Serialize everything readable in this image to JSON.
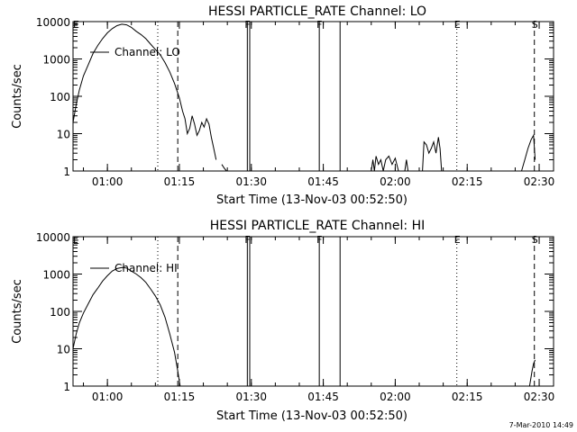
{
  "footer_text": "7-Mar-2010 14:49",
  "chart_data": [
    {
      "type": "line",
      "title": "HESSI PARTICLE_RATE Channel: LO",
      "xlabel": "Start Time (13-Nov-03 00:52:50)",
      "ylabel": "Counts/sec",
      "y_scale": "log",
      "ylim": [
        1,
        10000
      ],
      "xlim": [
        "00:52:50",
        "02:33:00"
      ],
      "x_ticks": [
        "01:00",
        "01:15",
        "01:30",
        "01:45",
        "02:00",
        "02:15",
        "02:30"
      ],
      "y_ticks": [
        "1",
        "10",
        "100",
        "1000",
        "10000"
      ],
      "legend": {
        "position": "top-left",
        "entries": [
          {
            "name": "Channel: LO"
          }
        ]
      },
      "event_lines": [
        {
          "time": "01:10:30",
          "style": "dotted",
          "label": ""
        },
        {
          "time": "01:14:40",
          "style": "dashed",
          "label": ""
        },
        {
          "time": "01:29:10",
          "style": "solid",
          "label": "F"
        },
        {
          "time": "01:29:40",
          "style": "solid",
          "label": ""
        },
        {
          "time": "01:44:10",
          "style": "solid",
          "label": "F"
        },
        {
          "time": "01:48:30",
          "style": "solid",
          "label": ""
        },
        {
          "time": "02:12:50",
          "style": "dotted",
          "label": "E"
        },
        {
          "time": "02:29:00",
          "style": "dashed",
          "label": "S"
        }
      ],
      "edge_label": "E",
      "series": [
        {
          "segments": [
            [
              [
                "00:52:50",
                20
              ],
              [
                "00:53:30",
                60
              ],
              [
                "00:54:10",
                150
              ],
              [
                "00:55:00",
                350
              ],
              [
                "00:56:00",
                700
              ],
              [
                "00:57:00",
                1400
              ],
              [
                "00:58:00",
                2300
              ],
              [
                "00:59:00",
                3500
              ],
              [
                "01:00:00",
                5000
              ],
              [
                "01:01:00",
                6500
              ],
              [
                "01:02:00",
                7800
              ],
              [
                "01:03:00",
                8500
              ],
              [
                "01:04:00",
                8200
              ],
              [
                "01:05:00",
                7000
              ],
              [
                "01:06:00",
                5500
              ],
              [
                "01:07:00",
                4500
              ],
              [
                "01:08:00",
                3500
              ],
              [
                "01:09:00",
                2500
              ],
              [
                "01:10:00",
                1800
              ],
              [
                "01:11:00",
                1300
              ],
              [
                "01:12:00",
                800
              ],
              [
                "01:13:00",
                450
              ],
              [
                "01:14:00",
                220
              ],
              [
                "01:15:00",
                90
              ],
              [
                "01:15:40",
                40
              ],
              [
                "01:16:10",
                25
              ],
              [
                "01:16:40",
                10
              ],
              [
                "01:17:10",
                14
              ],
              [
                "01:17:40",
                30
              ],
              [
                "01:18:10",
                18
              ],
              [
                "01:18:40",
                9
              ],
              [
                "01:19:10",
                12
              ],
              [
                "01:19:40",
                20
              ],
              [
                "01:20:10",
                15
              ],
              [
                "01:20:40",
                25
              ],
              [
                "01:21:10",
                18
              ],
              [
                "01:21:40",
                8
              ],
              [
                "01:22:10",
                4
              ],
              [
                "01:22:40",
                2
              ]
            ],
            [
              [
                "01:23:50",
                1.5
              ],
              [
                "01:24:20",
                1.2
              ],
              [
                "01:24:50",
                1
              ]
            ],
            [
              [
                "01:55:00",
                1
              ],
              [
                "01:55:20",
                2
              ],
              [
                "01:55:40",
                1
              ],
              [
                "01:56:00",
                2.5
              ],
              [
                "01:56:30",
                1.5
              ],
              [
                "01:57:00",
                2
              ],
              [
                "01:57:30",
                1
              ],
              [
                "01:58:00",
                2
              ],
              [
                "01:58:40",
                2.5
              ],
              [
                "01:59:20",
                1.5
              ],
              [
                "02:00:00",
                2.2
              ],
              [
                "02:00:40",
                1
              ]
            ],
            [
              [
                "02:02:00",
                1
              ],
              [
                "02:02:20",
                2
              ],
              [
                "02:02:40",
                1
              ]
            ],
            [
              [
                "02:05:40",
                1
              ],
              [
                "02:06:00",
                6
              ],
              [
                "02:06:30",
                5
              ],
              [
                "02:07:00",
                3
              ],
              [
                "02:07:30",
                4
              ],
              [
                "02:08:00",
                6
              ],
              [
                "02:08:30",
                3
              ],
              [
                "02:09:00",
                8
              ],
              [
                "02:09:20",
                4
              ],
              [
                "02:09:40",
                1
              ]
            ],
            [
              [
                "02:26:20",
                1
              ],
              [
                "02:27:00",
                2
              ],
              [
                "02:27:40",
                4
              ],
              [
                "02:28:20",
                7
              ],
              [
                "02:28:50",
                9
              ],
              [
                "02:29:10",
                2
              ]
            ]
          ]
        }
      ]
    },
    {
      "type": "line",
      "title": "HESSI PARTICLE_RATE Channel: HI",
      "xlabel": "Start Time (13-Nov-03 00:52:50)",
      "ylabel": "Counts/sec",
      "y_scale": "log",
      "ylim": [
        1,
        10000
      ],
      "xlim": [
        "00:52:50",
        "02:33:00"
      ],
      "x_ticks": [
        "01:00",
        "01:15",
        "01:30",
        "01:45",
        "02:00",
        "02:15",
        "02:30"
      ],
      "y_ticks": [
        "1",
        "10",
        "100",
        "1000",
        "10000"
      ],
      "legend": {
        "position": "top-left",
        "entries": [
          {
            "name": "Channel: HI"
          }
        ]
      },
      "event_lines": [
        {
          "time": "01:10:30",
          "style": "dotted",
          "label": ""
        },
        {
          "time": "01:14:40",
          "style": "dashed",
          "label": ""
        },
        {
          "time": "01:29:10",
          "style": "solid",
          "label": "F"
        },
        {
          "time": "01:29:40",
          "style": "solid",
          "label": ""
        },
        {
          "time": "01:44:10",
          "style": "solid",
          "label": "F"
        },
        {
          "time": "01:48:30",
          "style": "solid",
          "label": ""
        },
        {
          "time": "02:12:50",
          "style": "dotted",
          "label": "E"
        },
        {
          "time": "02:29:00",
          "style": "dashed",
          "label": "S"
        }
      ],
      "edge_label": "E",
      "series": [
        {
          "segments": [
            [
              [
                "00:52:50",
                10
              ],
              [
                "00:53:30",
                25
              ],
              [
                "00:54:10",
                50
              ],
              [
                "00:55:00",
                90
              ],
              [
                "00:56:00",
                160
              ],
              [
                "00:57:00",
                280
              ],
              [
                "00:58:00",
                420
              ],
              [
                "00:59:00",
                650
              ],
              [
                "01:00:00",
                900
              ],
              [
                "01:01:00",
                1200
              ],
              [
                "01:02:00",
                1400
              ],
              [
                "01:03:00",
                1500
              ],
              [
                "01:04:00",
                1450
              ],
              [
                "01:05:00",
                1200
              ],
              [
                "01:06:00",
                1000
              ],
              [
                "01:07:00",
                800
              ],
              [
                "01:08:00",
                600
              ],
              [
                "01:09:00",
                400
              ],
              [
                "01:10:00",
                260
              ],
              [
                "01:11:00",
                150
              ],
              [
                "01:12:00",
                70
              ],
              [
                "01:13:00",
                25
              ],
              [
                "01:14:00",
                8
              ],
              [
                "01:14:40",
                2.5
              ],
              [
                "01:15:10",
                1
              ]
            ],
            [
              [
                "02:28:00",
                1
              ],
              [
                "02:28:30",
                2.5
              ],
              [
                "02:28:50",
                4
              ],
              [
                "02:29:10",
                5
              ]
            ]
          ]
        }
      ]
    }
  ]
}
